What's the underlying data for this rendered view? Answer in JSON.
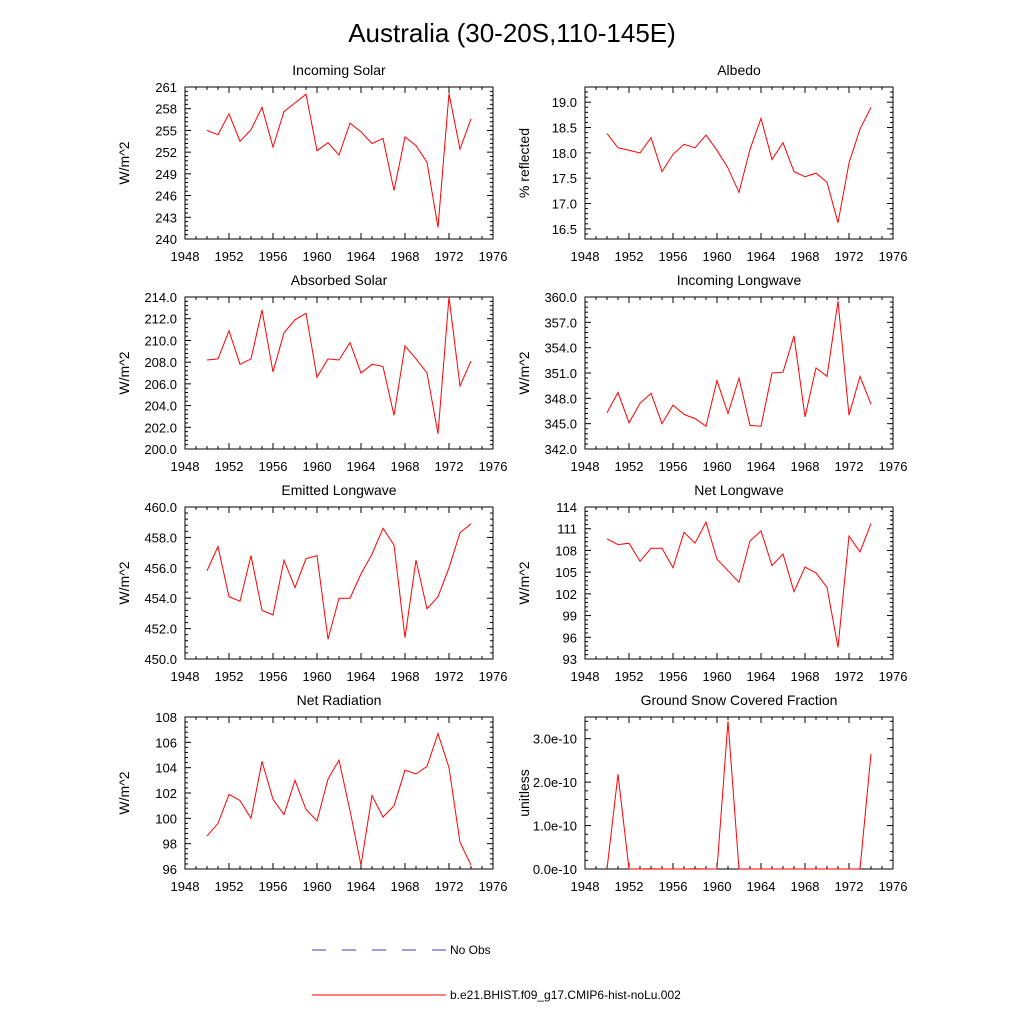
{
  "figure": {
    "title": "Australia (30-20S,110-145E)",
    "series_color": "#ff0000",
    "obs_color": "#3b3bbf"
  },
  "legend": {
    "obs_label": "No Obs",
    "model_label": "b.e21.BHIST.f09_g17.CMIP6-hist-noLu.002"
  },
  "chart_data": [
    {
      "type": "line",
      "title": "Incoming Solar",
      "ylabel": "W/m^2",
      "xlim": [
        1948,
        1976
      ],
      "xticks": [
        1948,
        1952,
        1956,
        1960,
        1964,
        1968,
        1972,
        1976
      ],
      "ylim": [
        240,
        261
      ],
      "yticks": [
        "240",
        "243",
        "246",
        "249",
        "252",
        "255",
        "258",
        "261"
      ],
      "x": [
        1950,
        1951,
        1952,
        1953,
        1954,
        1955,
        1956,
        1957,
        1958,
        1959,
        1960,
        1961,
        1962,
        1963,
        1964,
        1965,
        1966,
        1967,
        1968,
        1969,
        1970,
        1971,
        1972,
        1973,
        1974
      ],
      "values": [
        255.0,
        254.4,
        257.3,
        253.5,
        255.1,
        258.2,
        252.7,
        257.6,
        258.8,
        260.0,
        252.2,
        253.3,
        251.6,
        256.0,
        254.8,
        253.2,
        253.9,
        246.7,
        254.1,
        252.9,
        250.6,
        241.6,
        260.1,
        252.4,
        256.6
      ]
    },
    {
      "type": "line",
      "title": "Albedo",
      "ylabel": "% reflected",
      "xlim": [
        1948,
        1976
      ],
      "xticks": [
        1948,
        1952,
        1956,
        1960,
        1964,
        1968,
        1972,
        1976
      ],
      "ylim": [
        16.3,
        19.3
      ],
      "yticks": [
        "16.5",
        "17.0",
        "17.5",
        "18.0",
        "18.5",
        "19.0"
      ],
      "x": [
        1950,
        1951,
        1952,
        1953,
        1954,
        1955,
        1956,
        1957,
        1958,
        1959,
        1960,
        1961,
        1962,
        1963,
        1964,
        1965,
        1966,
        1967,
        1968,
        1969,
        1970,
        1971,
        1972,
        1973,
        1974
      ],
      "values": [
        18.38,
        18.1,
        18.05,
        18.0,
        18.3,
        17.63,
        17.97,
        18.17,
        18.1,
        18.35,
        18.05,
        17.7,
        17.22,
        18.07,
        18.68,
        17.87,
        18.2,
        17.63,
        17.53,
        17.6,
        17.42,
        16.62,
        17.8,
        18.47,
        18.9
      ]
    },
    {
      "type": "line",
      "title": "Absorbed Solar",
      "ylabel": "W/m^2",
      "xlim": [
        1948,
        1976
      ],
      "xticks": [
        1948,
        1952,
        1956,
        1960,
        1964,
        1968,
        1972,
        1976
      ],
      "ylim": [
        200,
        214
      ],
      "yticks": [
        "200.0",
        "202.0",
        "204.0",
        "206.0",
        "208.0",
        "210.0",
        "212.0",
        "214.0"
      ],
      "x": [
        1950,
        1951,
        1952,
        1953,
        1954,
        1955,
        1956,
        1957,
        1958,
        1959,
        1960,
        1961,
        1962,
        1963,
        1964,
        1965,
        1966,
        1967,
        1968,
        1969,
        1970,
        1971,
        1972,
        1973,
        1974
      ],
      "values": [
        208.2,
        208.3,
        210.9,
        207.8,
        208.3,
        212.8,
        207.1,
        210.7,
        211.9,
        212.5,
        206.6,
        208.3,
        208.2,
        209.8,
        207.0,
        207.8,
        207.6,
        203.1,
        209.5,
        208.3,
        207.0,
        201.4,
        214.0,
        205.8,
        208.1
      ]
    },
    {
      "type": "line",
      "title": "Incoming Longwave",
      "ylabel": "W/m^2",
      "xlim": [
        1948,
        1976
      ],
      "xticks": [
        1948,
        1952,
        1956,
        1960,
        1964,
        1968,
        1972,
        1976
      ],
      "ylim": [
        342,
        360
      ],
      "yticks": [
        "342.0",
        "345.0",
        "348.0",
        "351.0",
        "354.0",
        "357.0",
        "360.0"
      ],
      "x": [
        1950,
        1951,
        1952,
        1953,
        1954,
        1955,
        1956,
        1957,
        1958,
        1959,
        1960,
        1961,
        1962,
        1963,
        1964,
        1965,
        1966,
        1967,
        1968,
        1969,
        1970,
        1971,
        1972,
        1973,
        1974
      ],
      "values": [
        346.3,
        348.7,
        345.1,
        347.4,
        348.6,
        345.0,
        347.2,
        346.1,
        345.6,
        344.7,
        350.1,
        346.2,
        350.4,
        344.8,
        344.7,
        351.0,
        351.1,
        355.4,
        345.8,
        351.6,
        350.6,
        359.5,
        346.0,
        350.6,
        347.3
      ]
    },
    {
      "type": "line",
      "title": "Emitted Longwave",
      "ylabel": "W/m^2",
      "xlim": [
        1948,
        1976
      ],
      "xticks": [
        1948,
        1952,
        1956,
        1960,
        1964,
        1968,
        1972,
        1976
      ],
      "ylim": [
        450,
        460
      ],
      "yticks": [
        "450.0",
        "452.0",
        "454.0",
        "456.0",
        "458.0",
        "460.0"
      ],
      "x": [
        1950,
        1951,
        1952,
        1953,
        1954,
        1955,
        1956,
        1957,
        1958,
        1959,
        1960,
        1961,
        1962,
        1963,
        1964,
        1965,
        1966,
        1967,
        1968,
        1969,
        1970,
        1971,
        1972,
        1973,
        1974
      ],
      "values": [
        455.8,
        457.4,
        454.1,
        453.8,
        456.8,
        453.2,
        452.9,
        456.5,
        454.7,
        456.6,
        456.8,
        451.3,
        454.0,
        454.0,
        455.6,
        456.9,
        458.6,
        457.5,
        451.4,
        456.5,
        453.3,
        454.1,
        456.0,
        458.3,
        458.9
      ]
    },
    {
      "type": "line",
      "title": "Net Longwave",
      "ylabel": "W/m^2",
      "xlim": [
        1948,
        1976
      ],
      "xticks": [
        1948,
        1952,
        1956,
        1960,
        1964,
        1968,
        1972,
        1976
      ],
      "ylim": [
        93,
        114
      ],
      "yticks": [
        "93",
        "96",
        "99",
        "102",
        "105",
        "108",
        "111",
        "114"
      ],
      "x": [
        1950,
        1951,
        1952,
        1953,
        1954,
        1955,
        1956,
        1957,
        1958,
        1959,
        1960,
        1961,
        1962,
        1963,
        1964,
        1965,
        1966,
        1967,
        1968,
        1969,
        1970,
        1971,
        1972,
        1973,
        1974
      ],
      "values": [
        109.6,
        108.8,
        109.0,
        106.5,
        108.3,
        108.3,
        105.6,
        110.5,
        109.0,
        111.9,
        106.8,
        105.2,
        103.6,
        109.3,
        110.7,
        105.9,
        107.5,
        102.3,
        105.7,
        104.9,
        102.9,
        94.6,
        110.0,
        107.8,
        111.7
      ]
    },
    {
      "type": "line",
      "title": "Net Radiation",
      "ylabel": "W/m^2",
      "xlim": [
        1948,
        1976
      ],
      "xticks": [
        1948,
        1952,
        1956,
        1960,
        1964,
        1968,
        1972,
        1976
      ],
      "ylim": [
        96,
        108
      ],
      "yticks": [
        "96",
        "98",
        "100",
        "102",
        "104",
        "106",
        "108"
      ],
      "x": [
        1950,
        1951,
        1952,
        1953,
        1954,
        1955,
        1956,
        1957,
        1958,
        1959,
        1960,
        1961,
        1962,
        1963,
        1964,
        1965,
        1966,
        1967,
        1968,
        1969,
        1970,
        1971,
        1972,
        1973,
        1974
      ],
      "values": [
        98.6,
        99.6,
        101.9,
        101.4,
        100.0,
        104.5,
        101.5,
        100.3,
        103.0,
        100.7,
        99.8,
        103.1,
        104.6,
        100.6,
        96.3,
        101.8,
        100.1,
        101.0,
        103.8,
        103.5,
        104.1,
        106.7,
        104.0,
        98.1,
        96.3
      ]
    },
    {
      "type": "line",
      "title": "Ground Snow Covered Fraction",
      "ylabel": "unitless",
      "xlim": [
        1948,
        1976
      ],
      "xticks": [
        1948,
        1952,
        1956,
        1960,
        1964,
        1968,
        1972,
        1976
      ],
      "ylim": [
        0,
        3.5e-10
      ],
      "yticks": [
        "0.0e-10",
        "1.0e-10",
        "2.0e-10",
        "3.0e-10"
      ],
      "x": [
        1950,
        1951,
        1952,
        1953,
        1954,
        1955,
        1956,
        1957,
        1958,
        1959,
        1960,
        1961,
        1962,
        1963,
        1964,
        1965,
        1966,
        1967,
        1968,
        1969,
        1970,
        1971,
        1972,
        1973,
        1974
      ],
      "values": [
        0,
        2.18e-10,
        0,
        0,
        7e-13,
        0,
        0,
        0,
        7e-13,
        0,
        0,
        3.4e-10,
        0,
        0,
        0,
        0,
        0,
        0,
        0,
        0,
        0,
        0,
        0,
        0,
        2.65e-10
      ]
    }
  ]
}
